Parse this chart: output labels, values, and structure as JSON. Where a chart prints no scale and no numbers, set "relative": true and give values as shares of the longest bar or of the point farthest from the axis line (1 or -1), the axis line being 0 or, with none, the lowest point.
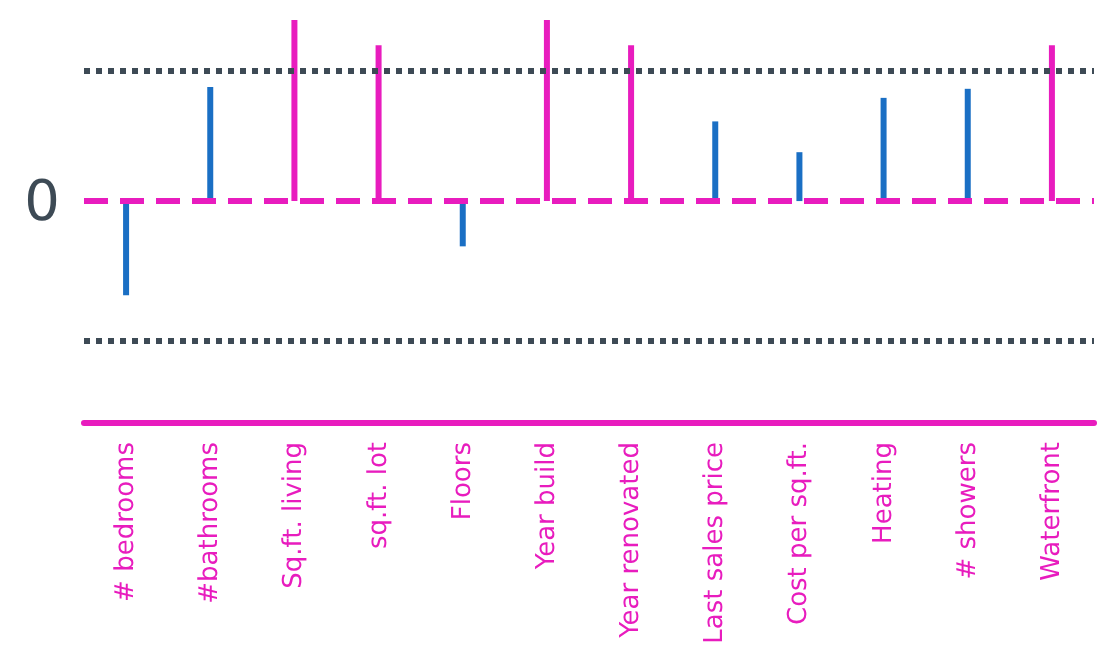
{
  "chart_data": {
    "type": "bar",
    "relative": true,
    "categories": [
      "# bedrooms",
      "#bathrooms",
      "Sq.ft. living",
      "sq.ft. lot",
      "Floors",
      "Year build",
      "Year renovated",
      "Last sales price",
      "Cost per sq.ft.",
      "Heating",
      "# showers",
      "Waterfront"
    ],
    "values": [
      -0.52,
      0.63,
      1,
      0.86,
      -0.25,
      1,
      0.86,
      0.44,
      0.27,
      0.57,
      0.62,
      0.86
    ],
    "colors": [
      "#1a6fc4",
      "#1a6fc4",
      "#e81cbe",
      "#e81cbe",
      "#1a6fc4",
      "#e81cbe",
      "#e81cbe",
      "#1a6fc4",
      "#1a6fc4",
      "#1a6fc4",
      "#1a6fc4",
      "#e81cbe"
    ],
    "ref_lines": [
      {
        "axis": "y",
        "value": 0,
        "label": "0",
        "color": "#e81cbe",
        "line_style": "dashed"
      },
      {
        "axis": "y",
        "value": 0.725,
        "label": null,
        "color": "#3d4a55",
        "line_style": "dotted"
      },
      {
        "axis": "y",
        "value": -0.77,
        "label": null,
        "color": "#3d4a55",
        "line_style": "dotted"
      }
    ]
  }
}
